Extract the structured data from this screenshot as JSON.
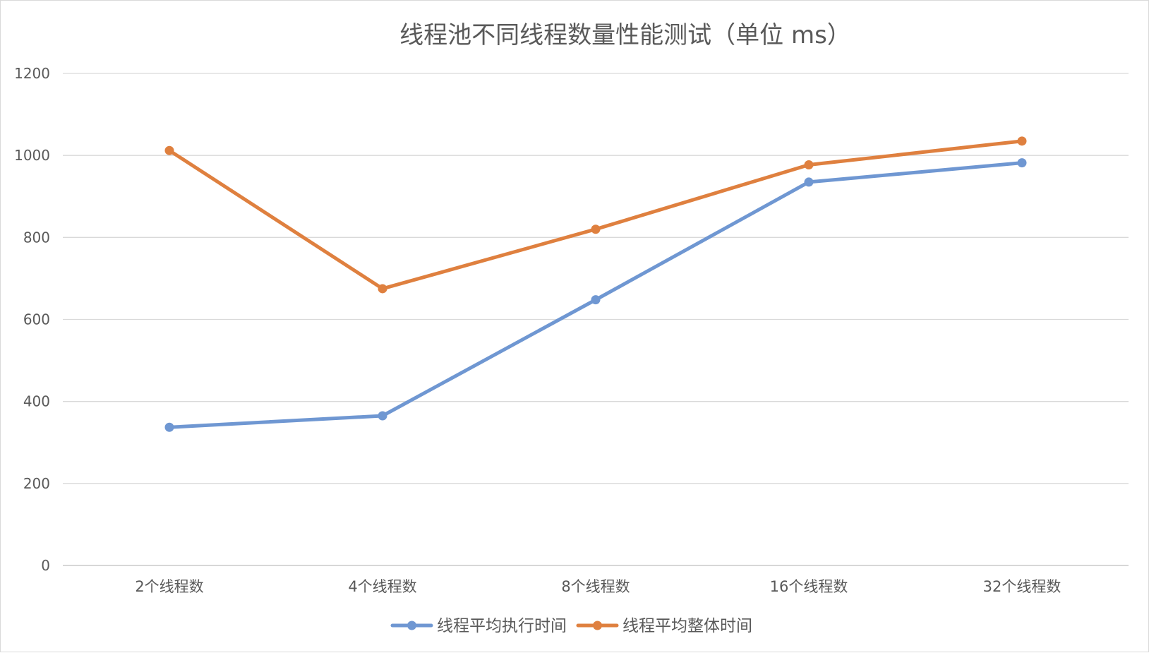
{
  "chart_data": {
    "type": "line",
    "title": "线程池不同线程数量性能测试（单位 ms）",
    "categories": [
      "2个线程数",
      "4个线程数",
      "8个线程数",
      "16个线程数",
      "32个线程数"
    ],
    "series": [
      {
        "name": "线程平均执行时间",
        "values": [
          337,
          365,
          648,
          935,
          982
        ],
        "color": "#6f97d2"
      },
      {
        "name": "线程平均整体时间",
        "values": [
          1012,
          675,
          820,
          977,
          1035
        ],
        "color": "#df803f"
      }
    ],
    "ylim": [
      0,
      1200
    ],
    "yticks": [
      "0",
      "200",
      "400",
      "600",
      "800",
      "1000",
      "1200"
    ],
    "grid": true,
    "legend_position": "bottom"
  }
}
